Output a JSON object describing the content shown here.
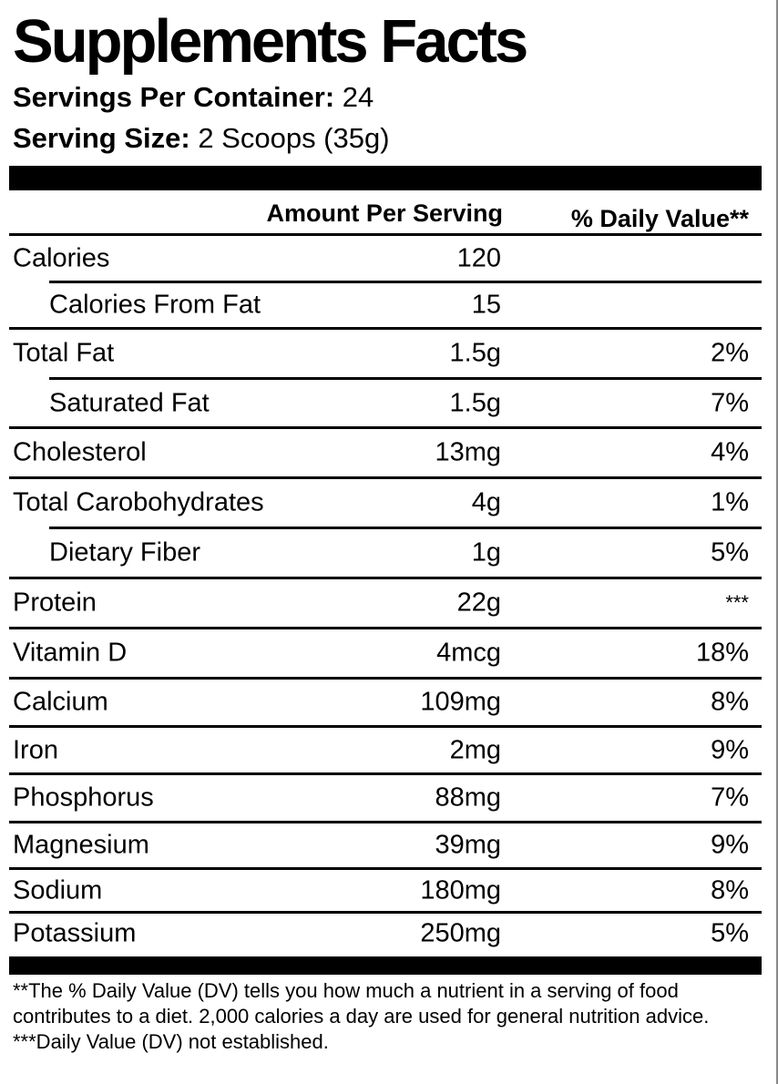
{
  "title": "Supplements Facts",
  "servings_per_container": {
    "label": "Servings Per Container:",
    "value": "24"
  },
  "serving_size": {
    "label": "Serving Size:",
    "value": "2 Scoops (35g)"
  },
  "columns": {
    "amount": "Amount Per Serving",
    "daily_value": "% Daily Value**"
  },
  "rows": [
    {
      "name": "Calories",
      "amount": "120",
      "dv": "",
      "sub": false
    },
    {
      "name": "Calories From Fat",
      "amount": "15",
      "dv": "",
      "sub": true
    },
    {
      "name": "Total Fat",
      "amount": "1.5g",
      "dv": "2%",
      "sub": false
    },
    {
      "name": "Saturated Fat",
      "amount": "1.5g",
      "dv": "7%",
      "sub": true
    },
    {
      "name": "Cholesterol",
      "amount": "13mg",
      "dv": "4%",
      "sub": false
    },
    {
      "name": "Total Carobohydrates",
      "amount": "4g",
      "dv": "1%",
      "sub": false
    },
    {
      "name": "Dietary Fiber",
      "amount": "1g",
      "dv": "5%",
      "sub": true
    },
    {
      "name": "Protein",
      "amount": "22g",
      "dv": "***",
      "sub": false
    },
    {
      "name": "Vitamin D",
      "amount": "4mcg",
      "dv": "18%",
      "sub": false
    },
    {
      "name": "Calcium",
      "amount": "109mg",
      "dv": "8%",
      "sub": false
    },
    {
      "name": "Iron",
      "amount": "2mg",
      "dv": "9%",
      "sub": false
    },
    {
      "name": "Phosphorus",
      "amount": "88mg",
      "dv": "7%",
      "sub": false
    },
    {
      "name": "Magnesium",
      "amount": "39mg",
      "dv": "9%",
      "sub": false
    },
    {
      "name": "Sodium",
      "amount": "180mg",
      "dv": "8%",
      "sub": false
    },
    {
      "name": "Potassium",
      "amount": "250mg",
      "dv": "5%",
      "sub": false
    }
  ],
  "footnotes": [
    "**The % Daily Value (DV) tells you how much a nutrient in a serving of food contributes to a diet. 2,000 calories a day are used for general nutrition advice.",
    "***Daily Value (DV) not established."
  ]
}
